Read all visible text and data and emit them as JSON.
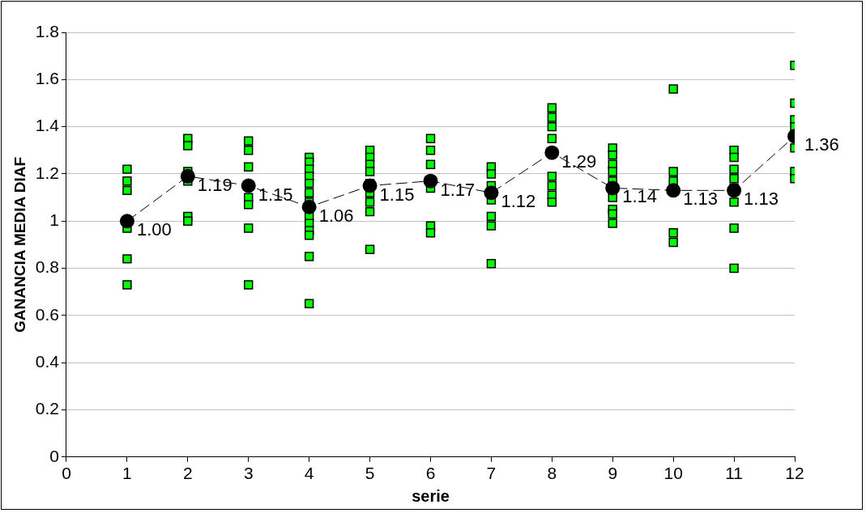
{
  "chart_data": {
    "type": "scatter",
    "xlabel": "serie",
    "ylabel": "GANANCIA MEDIA DIAF",
    "xlim": [
      0,
      12
    ],
    "xticks": [
      0,
      1,
      2,
      3,
      4,
      5,
      6,
      7,
      8,
      9,
      10,
      11,
      12
    ],
    "ylim": [
      0,
      1.8
    ],
    "yticks": [
      0,
      0.2,
      0.4,
      0.6,
      0.8,
      1,
      1.2,
      1.4,
      1.6,
      1.8
    ],
    "grid": "y",
    "legend": false,
    "series": [
      {
        "color": "#00ff00",
        "marker": "square",
        "x": [
          1,
          1,
          1,
          1,
          1,
          1,
          2,
          2,
          2,
          2,
          2,
          2,
          3,
          3,
          3,
          3,
          3,
          3,
          3,
          4,
          4,
          4,
          4,
          4,
          4,
          4,
          4,
          4,
          4,
          4,
          4,
          4,
          5,
          5,
          5,
          5,
          5,
          5,
          5,
          5,
          5,
          6,
          6,
          6,
          6,
          6,
          6,
          7,
          7,
          7,
          7,
          7,
          7,
          7,
          8,
          8,
          8,
          8,
          8,
          8,
          8,
          8,
          9,
          9,
          9,
          9,
          9,
          9,
          9,
          9,
          9,
          10,
          10,
          10,
          10,
          10,
          11,
          11,
          11,
          11,
          11,
          11,
          11,
          11,
          12,
          12,
          12,
          12,
          12,
          12,
          12
        ],
        "values": [
          1.22,
          1.17,
          1.13,
          0.97,
          0.84,
          0.73,
          1.35,
          1.32,
          1.21,
          1.17,
          1.02,
          1.0,
          1.34,
          1.3,
          1.23,
          1.1,
          1.07,
          0.97,
          0.73,
          1.27,
          1.25,
          1.22,
          1.19,
          1.16,
          1.12,
          1.08,
          1.02,
          0.99,
          0.96,
          0.94,
          0.85,
          0.65,
          1.3,
          1.27,
          1.24,
          1.21,
          1.16,
          1.12,
          1.08,
          1.04,
          0.88,
          1.35,
          1.3,
          1.24,
          1.14,
          0.98,
          0.95,
          1.23,
          1.2,
          1.15,
          1.09,
          1.02,
          0.98,
          0.82,
          1.48,
          1.44,
          1.4,
          1.35,
          1.19,
          1.15,
          1.11,
          1.08,
          1.31,
          1.28,
          1.24,
          1.21,
          1.17,
          1.1,
          1.05,
          1.03,
          0.99,
          1.56,
          1.21,
          1.17,
          0.95,
          0.91,
          1.3,
          1.27,
          1.22,
          1.18,
          1.14,
          1.08,
          0.97,
          0.8,
          1.66,
          1.5,
          1.43,
          1.4,
          1.31,
          1.21,
          1.18
        ]
      },
      {
        "type": "line",
        "color": "#000000",
        "marker": "circle",
        "line_style": "dashed",
        "x": [
          1,
          2,
          3,
          4,
          5,
          6,
          7,
          8,
          9,
          10,
          11,
          12
        ],
        "values": [
          1.0,
          1.19,
          1.15,
          1.06,
          1.15,
          1.17,
          1.12,
          1.29,
          1.14,
          1.13,
          1.13,
          1.36
        ],
        "value_labels": [
          "1.00",
          "1.19",
          "1.15",
          "1.06",
          "1.15",
          "1.17",
          "1.12",
          "1.29",
          "1.14",
          "1.13",
          "1.13",
          "1.36"
        ]
      }
    ]
  }
}
